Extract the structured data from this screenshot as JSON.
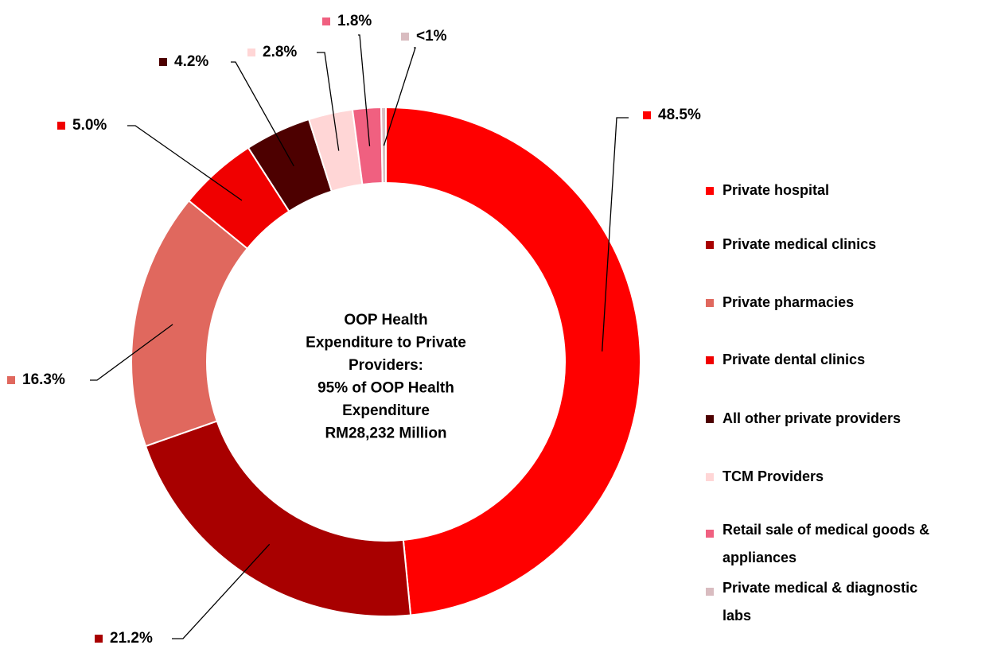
{
  "chart_data": {
    "type": "donut",
    "center_text": [
      "OOP Health",
      "Expenditure to Private",
      "Providers:",
      "95% of OOP Health",
      "Expenditure",
      "RM28,232 Million"
    ],
    "categories": [
      "Private hospital",
      "Private medical clinics",
      "Private pharmacies",
      "Private dental clinics",
      "All other private providers",
      "TCM Providers",
      "Retail sale of medical goods & appliances",
      "Private medical & diagnostic labs"
    ],
    "values": [
      48.5,
      21.2,
      16.3,
      5.0,
      4.2,
      2.8,
      1.8,
      0.3
    ],
    "value_labels": [
      "48.5%",
      "21.2%",
      "16.3%",
      "5.0%",
      "4.2%",
      "2.8%",
      "1.8%",
      "<1%"
    ],
    "colors": [
      "#ff0000",
      "#a80000",
      "#e0685e",
      "#f00000",
      "#4d0000",
      "#ffd6d6",
      "#f06080",
      "#d9bcc0"
    ],
    "legend": "right"
  }
}
